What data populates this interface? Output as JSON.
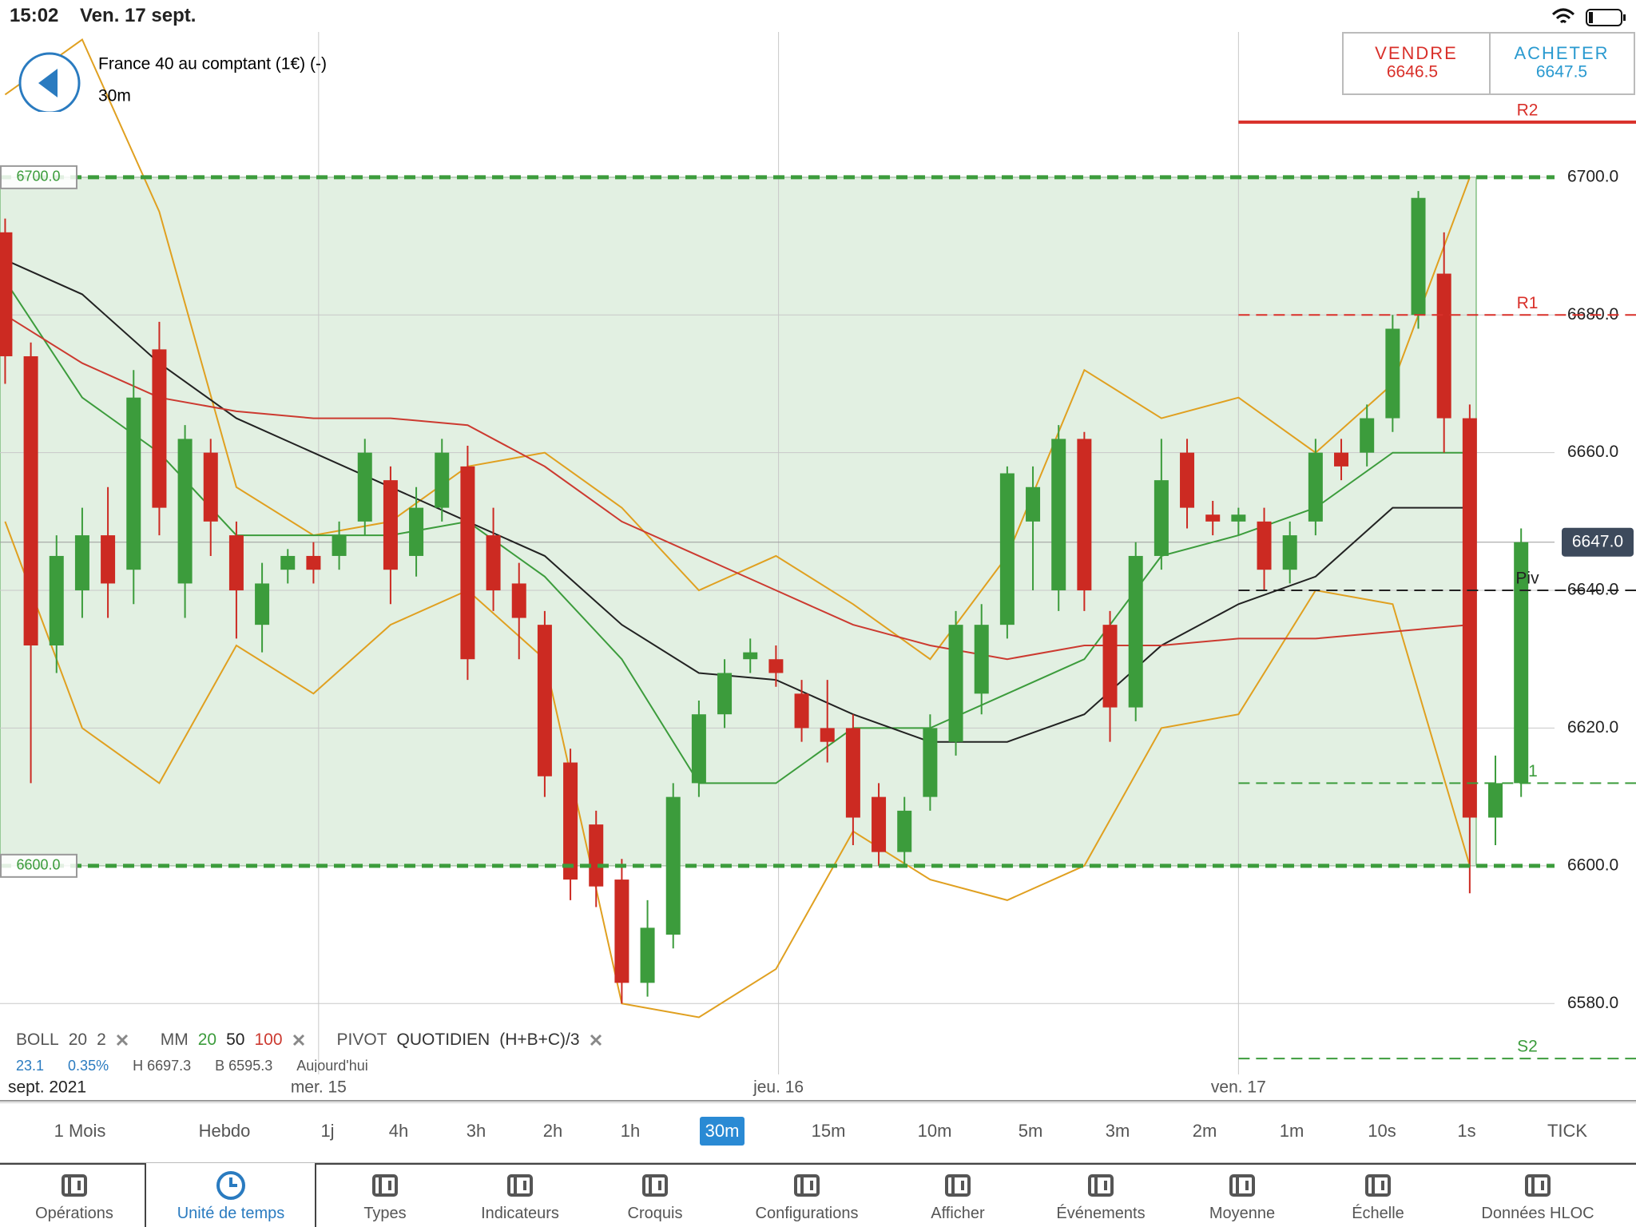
{
  "status_bar": {
    "time": "15:02",
    "date": "Ven. 17 sept."
  },
  "header": {
    "instrument": "France 40 au comptant (1€) (-)",
    "timeframe": "30m",
    "sell": {
      "label": "VENDRE",
      "price": 6646.5
    },
    "buy": {
      "label": "ACHETER",
      "price": 6647.5
    }
  },
  "chart_data": {
    "type": "candlestick",
    "open": [
      6692,
      6674,
      6632,
      6640,
      6648,
      6643,
      6675,
      6641,
      6660,
      6648,
      6635,
      6643,
      6645,
      6645,
      6650,
      6656,
      6645,
      6652,
      6658,
      6648,
      6641,
      6635,
      6615,
      6606,
      6598,
      6583,
      6590,
      6612,
      6622,
      6630,
      6630,
      6625,
      6620,
      6620,
      6610,
      6602,
      6610,
      6618,
      6625,
      6635,
      6650,
      6640,
      6662,
      6635,
      6623,
      6645,
      6660,
      6651,
      6650,
      6650,
      6643,
      6650,
      6660,
      6660,
      6665,
      6680,
      6686,
      6665,
      6607,
      6612
    ],
    "high": [
      6694,
      6676,
      6648,
      6652,
      6655,
      6672,
      6679,
      6664,
      6662,
      6650,
      6644,
      6646,
      6647,
      6650,
      6662,
      6658,
      6655,
      6662,
      6661,
      6652,
      6644,
      6637,
      6617,
      6608,
      6601,
      6595,
      6612,
      6624,
      6630,
      6633,
      6632,
      6627,
      6627,
      6622,
      6612,
      6610,
      6622,
      6637,
      6638,
      6658,
      6658,
      6664,
      6663,
      6637,
      6647,
      6662,
      6662,
      6653,
      6652,
      6652,
      6650,
      6662,
      6662,
      6667,
      6680,
      6698,
      6692,
      6667,
      6616,
      6649
    ],
    "low": [
      6670,
      6612,
      6628,
      6636,
      6636,
      6638,
      6648,
      6636,
      6645,
      6633,
      6631,
      6641,
      6641,
      6643,
      6648,
      6638,
      6642,
      6650,
      6627,
      6637,
      6630,
      6610,
      6595,
      6594,
      6580,
      6581,
      6588,
      6610,
      6620,
      6628,
      6626,
      6618,
      6615,
      6603,
      6600,
      6600,
      6608,
      6616,
      6622,
      6633,
      6640,
      6637,
      6637,
      6618,
      6621,
      6643,
      6649,
      6648,
      6648,
      6640,
      6641,
      6648,
      6656,
      6658,
      6663,
      6678,
      6660,
      6596,
      6603,
      6610
    ],
    "close": [
      6674,
      6632,
      6645,
      6648,
      6641,
      6668,
      6652,
      6662,
      6650,
      6640,
      6641,
      6645,
      6643,
      6648,
      6660,
      6643,
      6652,
      6660,
      6630,
      6640,
      6636,
      6613,
      6598,
      6597,
      6583,
      6591,
      6610,
      6622,
      6628,
      6631,
      6628,
      6620,
      6618,
      6607,
      6602,
      6608,
      6620,
      6635,
      6635,
      6657,
      6655,
      6662,
      6640,
      6623,
      6645,
      6656,
      6652,
      6650,
      6651,
      6643,
      6648,
      6660,
      6658,
      6665,
      6678,
      6697,
      6665,
      6607,
      6612,
      6647
    ],
    "up_color": "#3c9c3c",
    "down_color": "#cc2a22",
    "overlays": {
      "x": [
        0,
        3,
        6,
        9,
        12,
        15,
        18,
        21,
        24,
        27,
        30,
        33,
        36,
        39,
        42,
        45,
        48,
        51,
        54,
        57
      ],
      "series": [
        {
          "name": "BOLL",
          "color": "#e0a020",
          "values": [
            6712,
            6720,
            6695,
            6655,
            6648,
            6650,
            6658,
            6660,
            6652,
            6640,
            6645,
            6638,
            6630,
            6645,
            6672,
            6665,
            6668,
            6660,
            6670,
            6700
          ]
        },
        {
          "name": "BOLL",
          "color": "#e0a020",
          "values": [
            6650,
            6620,
            6612,
            6632,
            6625,
            6635,
            6640,
            6630,
            6580,
            6578,
            6585,
            6605,
            6598,
            6595,
            6600,
            6620,
            6622,
            6640,
            6638,
            6600
          ]
        },
        {
          "name": "MM 20",
          "color": "#3c9c3c",
          "values": [
            6685,
            6668,
            6660,
            6648,
            6648,
            6648,
            6650,
            6642,
            6630,
            6612,
            6612,
            6620,
            6620,
            6625,
            6630,
            6645,
            6648,
            6652,
            6660,
            6660
          ]
        },
        {
          "name": "MM 50",
          "color": "#222222",
          "values": [
            6688,
            6683,
            6673,
            6665,
            6660,
            6655,
            6650,
            6645,
            6635,
            6628,
            6627,
            6622,
            6618,
            6618,
            6622,
            6632,
            6638,
            6642,
            6652,
            6652
          ]
        },
        {
          "name": "MM 100",
          "color": "#cc3a30",
          "values": [
            6680,
            6673,
            6668,
            6666,
            6665,
            6665,
            6664,
            6658,
            6650,
            6645,
            6640,
            6635,
            6632,
            6630,
            6632,
            6632,
            6633,
            6633,
            6634,
            6635
          ]
        }
      ]
    },
    "xlim": [
      -0.2,
      60.3
    ],
    "xticks": [
      {
        "value": 12.2,
        "label": "mer. 15"
      },
      {
        "value": 30.1,
        "label": "jeu. 16"
      },
      {
        "value": 48,
        "label": "ven. 17"
      }
    ],
    "x_caption": "sept. 2021",
    "ylim": [
      6569.7,
      6721.1
    ],
    "yticks": [
      {
        "value": 6580,
        "label": "6580.0"
      },
      {
        "value": 6600,
        "label": "6600.0"
      },
      {
        "value": 6620,
        "label": "6620.0"
      },
      {
        "value": 6640,
        "label": "6640.0"
      },
      {
        "value": 6660,
        "label": "6660.0"
      },
      {
        "value": 6680,
        "label": "6680.0"
      },
      {
        "value": 6700,
        "label": "6700.0"
      }
    ],
    "grid": true,
    "range_box": {
      "color": "#3c9c3c",
      "lines": [
        {
          "value": 6700,
          "label": "6700.0"
        },
        {
          "value": 6600,
          "label": "6600.0"
        }
      ]
    },
    "levels": [
      {
        "name": "R2",
        "value": 6708,
        "color": "#d9302a",
        "style": "solid"
      },
      {
        "name": "R1",
        "value": 6680,
        "color": "#d9302a",
        "style": "dashed"
      },
      {
        "name": "Piv",
        "value": 6640,
        "color": "#222222",
        "style": "dashed"
      },
      {
        "name": "S1",
        "value": 6612,
        "color": "#3c9c3c",
        "style": "dashed"
      },
      {
        "name": "S2",
        "value": 6572,
        "color": "#3c9c3c",
        "style": "dashed"
      }
    ],
    "last_price": {
      "value": 6647,
      "label": "6647.0"
    }
  },
  "indicator_bar": {
    "groups": [
      {
        "label": "BOLL",
        "params": [
          "20",
          "2"
        ]
      },
      {
        "label": "MM",
        "params": [
          "20",
          "50",
          "100"
        ]
      },
      {
        "label": "PIVOT",
        "params": [
          "QUOTIDIEN",
          "(H+B+C)/3"
        ]
      }
    ],
    "stats": [
      "23.1",
      "0.35%",
      "H 6697.3",
      "B 6595.3",
      "Aujourd'hui"
    ]
  },
  "timeframes": {
    "items": [
      "1 Mois",
      "Hebdo",
      "1j",
      "4h",
      "3h",
      "2h",
      "1h",
      "30m",
      "15m",
      "10m",
      "5m",
      "3m",
      "2m",
      "1m",
      "10s",
      "1s",
      "TICK"
    ],
    "selected": "30m"
  },
  "toolbar": {
    "items": [
      "Opérations",
      "Unité de temps",
      "Types",
      "Indicateurs",
      "Croquis",
      "Configurations",
      "Afficher",
      "Événements",
      "Moyenne",
      "Échelle",
      "Données HLOC"
    ],
    "selected": "Unité de temps"
  }
}
